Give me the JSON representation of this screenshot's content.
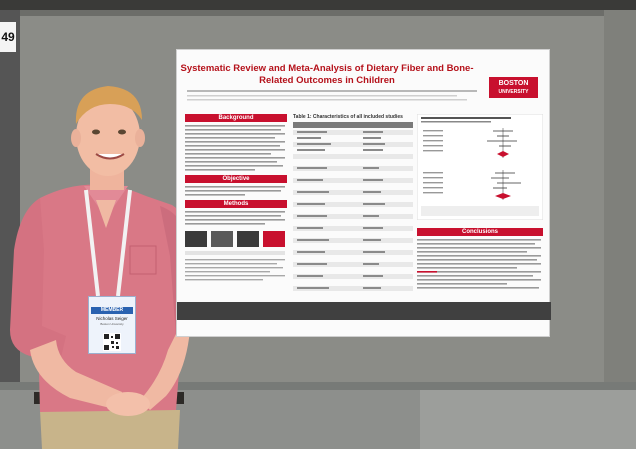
{
  "booth": {
    "number": "49"
  },
  "poster": {
    "title_line1": "Systematic Review and Meta-Analysis of Dietary Fiber and Bone-",
    "title_line2": "Related Outcomes in Children",
    "logo_line1": "BOSTON",
    "logo_line2": "UNIVERSITY",
    "section_background": "Background",
    "section_objective": "Objective",
    "section_methods": "Methods",
    "section_conclusions": "Conclusions",
    "table_title": "Table 1: Characteristics of all included studies"
  },
  "badge": {
    "label": "MEMBER",
    "name": "Nicholas Seiger",
    "affiliation": "Boston University"
  },
  "colors": {
    "accent_red": "#c8102e",
    "wall_gray": "#8a8b86",
    "shirt_pink": "#d97886"
  }
}
